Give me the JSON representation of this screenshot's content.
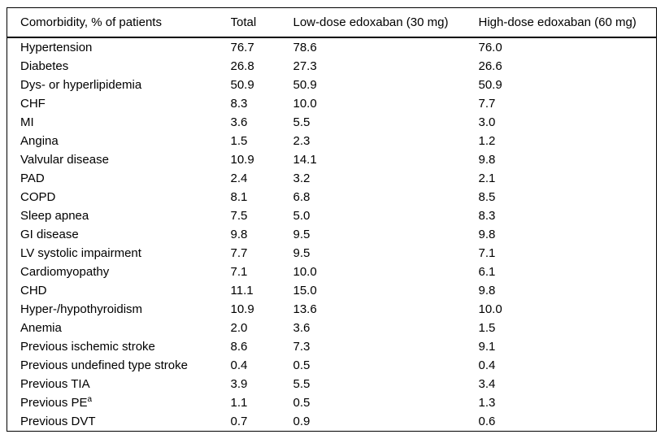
{
  "table": {
    "columns": [
      "Comorbidity, % of patients",
      "Total",
      "Low-dose edoxaban (30 mg)",
      "High-dose edoxaban (60 mg)"
    ],
    "rows": [
      {
        "label": "Hypertension",
        "total": "76.7",
        "low_dose": "78.6",
        "high_dose": "76.0"
      },
      {
        "label": "Diabetes",
        "total": "26.8",
        "low_dose": "27.3",
        "high_dose": "26.6"
      },
      {
        "label": "Dys- or hyperlipidemia",
        "total": "50.9",
        "low_dose": "50.9",
        "high_dose": "50.9"
      },
      {
        "label": "CHF",
        "total": "8.3",
        "low_dose": "10.0",
        "high_dose": "7.7"
      },
      {
        "label": "MI",
        "total": "3.6",
        "low_dose": "5.5",
        "high_dose": "3.0"
      },
      {
        "label": "Angina",
        "total": "1.5",
        "low_dose": "2.3",
        "high_dose": "1.2"
      },
      {
        "label": "Valvular disease",
        "total": "10.9",
        "low_dose": "14.1",
        "high_dose": "9.8"
      },
      {
        "label": "PAD",
        "total": "2.4",
        "low_dose": "3.2",
        "high_dose": "2.1"
      },
      {
        "label": "COPD",
        "total": "8.1",
        "low_dose": "6.8",
        "high_dose": "8.5"
      },
      {
        "label": "Sleep apnea",
        "total": "7.5",
        "low_dose": "5.0",
        "high_dose": "8.3"
      },
      {
        "label": "GI disease",
        "total": "9.8",
        "low_dose": "9.5",
        "high_dose": "9.8"
      },
      {
        "label": "LV systolic impairment",
        "total": "7.7",
        "low_dose": "9.5",
        "high_dose": "7.1"
      },
      {
        "label": "Cardiomyopathy",
        "total": "7.1",
        "low_dose": "10.0",
        "high_dose": "6.1"
      },
      {
        "label": "CHD",
        "total": "11.1",
        "low_dose": "15.0",
        "high_dose": "9.8"
      },
      {
        "label": "Hyper-/hypothyroidism",
        "total": "10.9",
        "low_dose": "13.6",
        "high_dose": "10.0"
      },
      {
        "label": "Anemia",
        "total": "2.0",
        "low_dose": "3.6",
        "high_dose": "1.5"
      },
      {
        "label": "Previous ischemic stroke",
        "total": "8.6",
        "low_dose": "7.3",
        "high_dose": "9.1"
      },
      {
        "label": "Previous undefined type stroke",
        "total": "0.4",
        "low_dose": "0.5",
        "high_dose": "0.4"
      },
      {
        "label": "Previous TIA",
        "total": "3.9",
        "low_dose": "5.5",
        "high_dose": "3.4"
      },
      {
        "label": "Previous PE",
        "label_sup": "a",
        "total": "1.1",
        "low_dose": "0.5",
        "high_dose": "1.3"
      },
      {
        "label": "Previous DVT",
        "total": "0.7",
        "low_dose": "0.9",
        "high_dose": "0.6"
      }
    ]
  }
}
